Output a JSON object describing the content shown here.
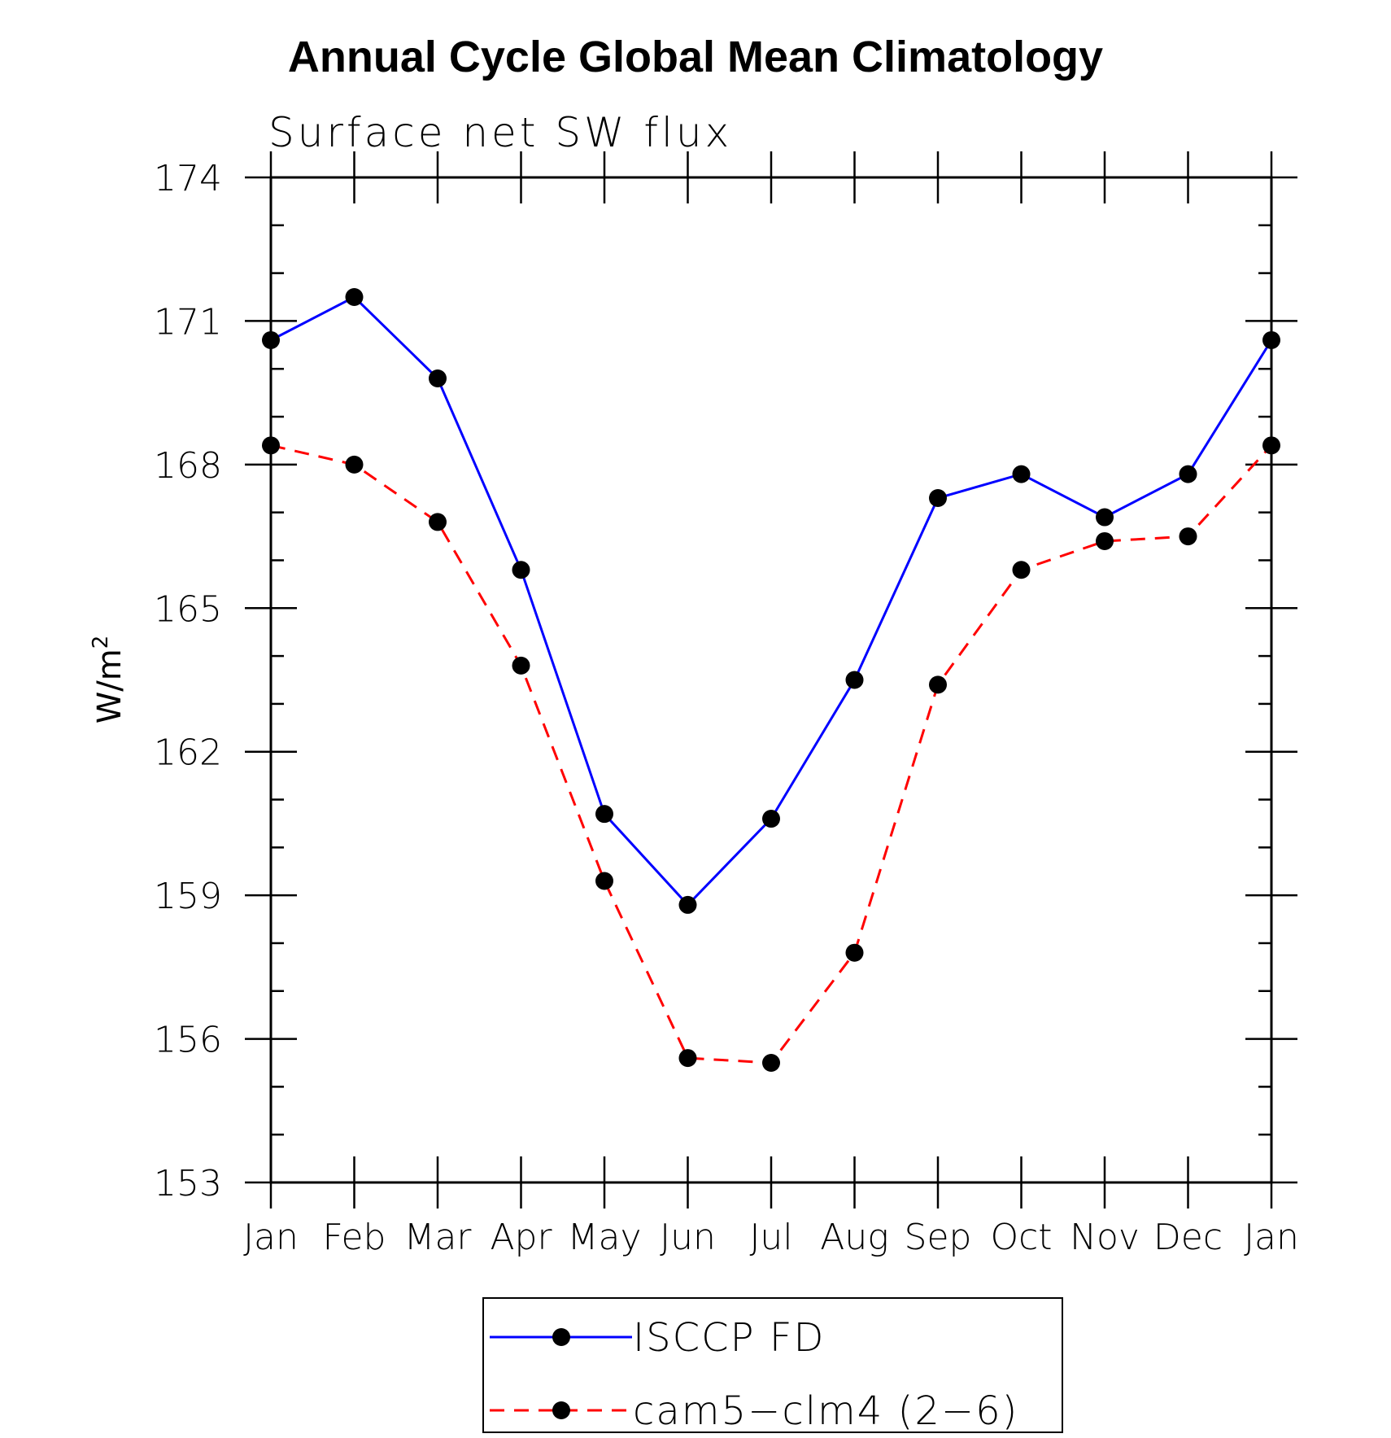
{
  "chart_data": {
    "type": "line",
    "title": "Annual Cycle Global Mean Climatology",
    "subtitle": "Surface net SW flux",
    "ylabel": "W/m",
    "ylabel_superscript": "2",
    "xlabel": "",
    "categories": [
      "Jan",
      "Feb",
      "Mar",
      "Apr",
      "May",
      "Jun",
      "Jul",
      "Aug",
      "Sep",
      "Oct",
      "Nov",
      "Dec",
      "Jan"
    ],
    "yticks": [
      "174",
      "171",
      "168",
      "165",
      "162",
      "159",
      "156",
      "153"
    ],
    "ylim": [
      153,
      174
    ],
    "grid": false,
    "legend_position": "bottom",
    "series": [
      {
        "name": "ISCCP FD",
        "color": "#0000ff",
        "line_style": "solid",
        "marker": "filled-circle",
        "values": [
          170.6,
          171.5,
          169.8,
          165.8,
          160.7,
          158.8,
          160.6,
          163.5,
          167.3,
          167.8,
          166.9,
          167.8,
          170.6
        ]
      },
      {
        "name": "cam5−clm4 (2−6)",
        "color": "#ff0000",
        "line_style": "dashed",
        "marker": "filled-circle",
        "values": [
          168.4,
          168.0,
          166.8,
          163.8,
          159.3,
          155.6,
          155.5,
          157.8,
          163.4,
          165.8,
          166.4,
          166.5,
          168.4
        ]
      }
    ]
  }
}
